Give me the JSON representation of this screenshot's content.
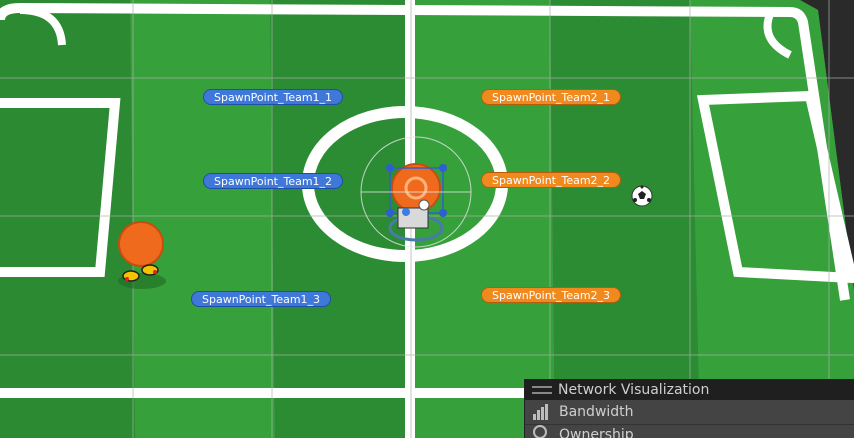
{
  "spawn_points": {
    "team1": [
      "SpawnPoint_Team1_1",
      "SpawnPoint_Team1_2",
      "SpawnPoint_Team1_3"
    ],
    "team2": [
      "SpawnPoint_Team2_1",
      "SpawnPoint_Team2_2",
      "SpawnPoint_Team2_3"
    ]
  },
  "overlay_panel": {
    "title": "Network Visualization",
    "items": [
      {
        "label": "Bandwidth",
        "icon": "bandwidth-bars-icon"
      },
      {
        "label": "Ownership",
        "icon": "ownership-icon"
      }
    ]
  },
  "colors": {
    "field_dark": "#2b8a32",
    "field_light": "#37a23c",
    "lines": "#ffffff",
    "team1": "#3f78d8",
    "team2": "#f08a1f",
    "grid": "#9a9a9a"
  },
  "icons": {
    "player": "orange-player-icon",
    "ball": "soccer-ball-icon",
    "selected_object": "selected-player-gizmo-icon"
  }
}
